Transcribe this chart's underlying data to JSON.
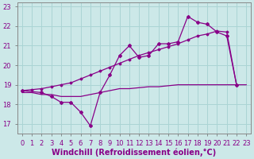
{
  "xlabel": "Windchill (Refroidissement éolien,°C)",
  "background_color": "#cce8e8",
  "grid_color": "#aad4d4",
  "line_color": "#880088",
  "xlim": [
    -0.5,
    23.5
  ],
  "ylim": [
    16.5,
    23.2
  ],
  "yticks": [
    17,
    18,
    19,
    20,
    21,
    22,
    23
  ],
  "xticks": [
    0,
    1,
    2,
    3,
    4,
    5,
    6,
    7,
    8,
    9,
    10,
    11,
    12,
    13,
    14,
    15,
    16,
    17,
    18,
    19,
    20,
    21,
    22,
    23
  ],
  "line1_x": [
    0,
    1,
    2,
    3,
    4,
    5,
    6,
    7,
    8,
    9,
    10,
    11,
    12,
    13,
    14,
    15,
    16,
    17,
    18,
    19,
    20,
    21,
    22,
    23
  ],
  "line1_y": [
    18.6,
    18.6,
    18.5,
    18.5,
    18.4,
    18.4,
    18.4,
    18.5,
    18.6,
    18.7,
    18.8,
    18.8,
    18.85,
    18.9,
    18.9,
    18.95,
    19.0,
    19.0,
    19.0,
    19.0,
    19.0,
    19.0,
    19.0,
    19.0
  ],
  "line2_x": [
    0,
    2,
    3,
    4,
    5,
    6,
    7,
    8,
    9,
    10,
    11,
    12,
    13,
    14,
    15,
    16,
    17,
    18,
    19,
    20,
    21,
    22
  ],
  "line2_y": [
    18.7,
    18.6,
    18.4,
    18.1,
    18.1,
    17.6,
    16.9,
    18.6,
    19.5,
    20.5,
    21.0,
    20.4,
    20.5,
    21.1,
    21.1,
    21.2,
    22.5,
    22.2,
    22.1,
    21.7,
    21.5,
    19.0
  ],
  "line3_x": [
    0,
    1,
    2,
    3,
    4,
    5,
    6,
    7,
    8,
    9,
    10,
    11,
    12,
    13,
    14,
    15,
    16,
    17,
    18,
    19,
    20,
    21,
    22
  ],
  "line3_y": [
    18.7,
    18.75,
    18.8,
    18.9,
    19.0,
    19.1,
    19.3,
    19.5,
    19.7,
    19.9,
    20.1,
    20.3,
    20.5,
    20.65,
    20.8,
    20.95,
    21.1,
    21.3,
    21.5,
    21.6,
    21.75,
    21.7,
    19.0
  ],
  "tick_fontsize": 6,
  "xlabel_fontsize": 7
}
